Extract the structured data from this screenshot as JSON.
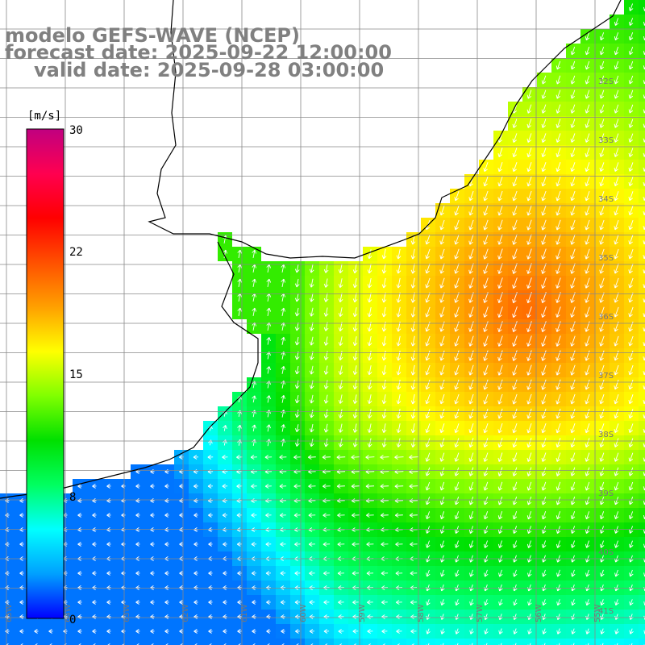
{
  "titles": {
    "model": "modelo GEFS-WAVE (NCEP)",
    "forecast": "forecast date: 2025-09-22 12:00:00",
    "valid": "valid date: 2025-09-28 03:00:00"
  },
  "colorbar": {
    "unit": "[m/s]",
    "ticks": [
      "30",
      "22",
      "15",
      "8",
      "0"
    ],
    "tick_values": [
      30,
      22,
      15,
      8,
      0
    ],
    "min": 0,
    "max": 30,
    "colors": [
      "#0000ff",
      "#00a0ff",
      "#00ffff",
      "#00ff60",
      "#00e000",
      "#80ff00",
      "#ffff00",
      "#ffa000",
      "#ff5000",
      "#ff0000",
      "#ff0050",
      "#c00080"
    ]
  },
  "lat_labels": [
    "32S",
    "33S",
    "34S",
    "35S",
    "36S",
    "37S",
    "38S",
    "39S",
    "40S",
    "41S"
  ],
  "lon_labels": [
    "65W",
    "64W",
    "63W",
    "62W",
    "61W",
    "60W",
    "59W",
    "58W",
    "57W",
    "56W",
    "55W"
  ]
}
